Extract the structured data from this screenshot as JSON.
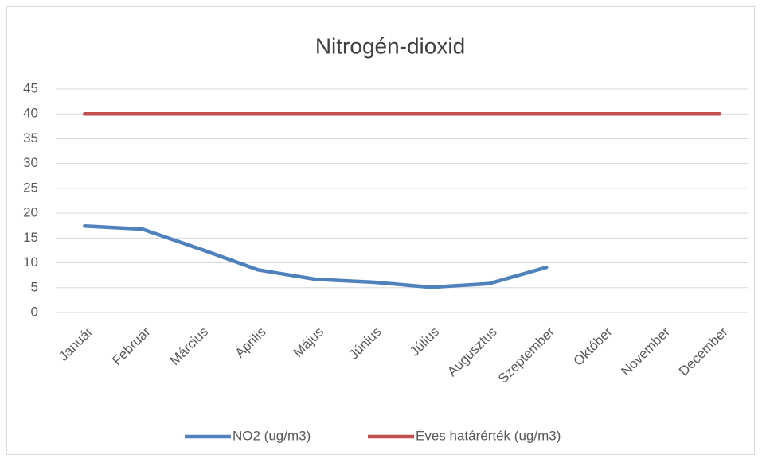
{
  "chart_data": {
    "type": "line",
    "title": "Nitrogén-dioxid",
    "categories": [
      "Január",
      "Február",
      "Március",
      "Április",
      "Május",
      "Június",
      "Július",
      "Augusztus",
      "Szeptember",
      "Október",
      "November",
      "December"
    ],
    "series": [
      {
        "name": "NO2  (ug/m3)",
        "color": "#4f81bd",
        "values": [
          17.4,
          16.8,
          12.8,
          8.6,
          6.7,
          6.1,
          5.1,
          5.8,
          9.1,
          null,
          null,
          null
        ]
      },
      {
        "name": "Éves határérték (ug/m3)",
        "color": "#c0504d",
        "values": [
          40,
          40,
          40,
          40,
          40,
          40,
          40,
          40,
          40,
          40,
          40,
          40
        ]
      }
    ],
    "ylim": [
      0,
      45
    ],
    "yticks": [
      0,
      5,
      10,
      15,
      20,
      25,
      30,
      35,
      40,
      45
    ],
    "grid": true,
    "legend": "bottom"
  }
}
